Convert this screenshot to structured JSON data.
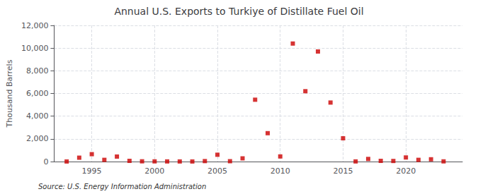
{
  "chart_data": {
    "type": "scatter",
    "title": "Annual U.S. Exports to Turkiye of Distillate Fuel Oil",
    "ylabel": "Thousand Barrels",
    "annotation": "Source: U.S. Energy Information Administration",
    "x": [
      1993,
      1994,
      1995,
      1996,
      1997,
      1998,
      1999,
      2000,
      2001,
      2002,
      2003,
      2004,
      2005,
      2006,
      2007,
      2008,
      2009,
      2010,
      2011,
      2012,
      2013,
      2014,
      2015,
      2016,
      2017,
      2018,
      2019,
      2020,
      2021,
      2022,
      2023
    ],
    "values": [
      5,
      340,
      650,
      150,
      440,
      60,
      20,
      15,
      10,
      8,
      5,
      40,
      600,
      30,
      280,
      5450,
      2500,
      450,
      10400,
      6200,
      9700,
      5200,
      2050,
      10,
      230,
      60,
      50,
      360,
      150,
      200,
      15
    ],
    "color": "#cc0000",
    "marker": "square",
    "xlim": [
      1992,
      2024.5
    ],
    "xticks": [
      1995,
      2000,
      2005,
      2010,
      2015,
      2020
    ],
    "ylim": [
      0,
      12000
    ],
    "yticks": [
      0,
      {
        "value": 2000,
        "label": "2,000"
      },
      {
        "value": 4000,
        "label": "4,000"
      },
      {
        "value": 6000,
        "label": "6,000"
      },
      {
        "value": 8000,
        "label": "8,000"
      },
      {
        "value": 10000,
        "label": "10,000"
      },
      {
        "value": 12000,
        "label": "12,000"
      }
    ],
    "grid": true
  }
}
